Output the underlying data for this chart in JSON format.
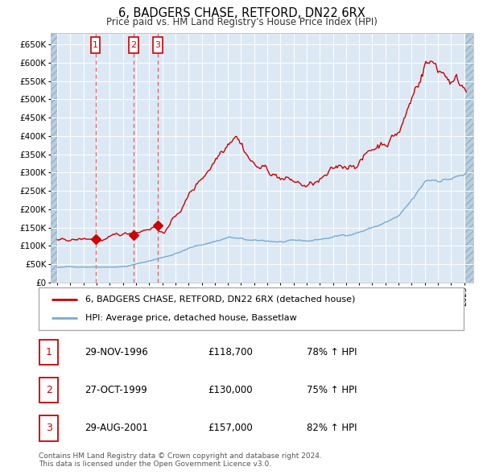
{
  "title": "6, BADGERS CHASE, RETFORD, DN22 6RX",
  "subtitle": "Price paid vs. HM Land Registry's House Price Index (HPI)",
  "legend_line1": "6, BADGERS CHASE, RETFORD, DN22 6RX (detached house)",
  "legend_line2": "HPI: Average price, detached house, Bassetlaw",
  "footer1": "Contains HM Land Registry data © Crown copyright and database right 2024.",
  "footer2": "This data is licensed under the Open Government Licence v3.0.",
  "sales": [
    {
      "label": "1",
      "date": "29-NOV-1996",
      "price": 118700,
      "hpi_pct": "78% ↑ HPI",
      "year_x": 1996.91
    },
    {
      "label": "2",
      "date": "27-OCT-1999",
      "price": 130000,
      "hpi_pct": "75% ↑ HPI",
      "year_x": 1999.82
    },
    {
      "label": "3",
      "date": "29-AUG-2001",
      "price": 157000,
      "hpi_pct": "82% ↑ HPI",
      "year_x": 2001.66
    }
  ],
  "ylim": [
    0,
    680000
  ],
  "yticks": [
    0,
    50000,
    100000,
    150000,
    200000,
    250000,
    300000,
    350000,
    400000,
    450000,
    500000,
    550000,
    600000,
    650000
  ],
  "xlim_start": 1993.5,
  "xlim_end": 2025.7,
  "bg_color": "#dce9f5",
  "hatch_color": "#b8cfe0",
  "grid_color": "#ffffff",
  "red_line_color": "#cc0000",
  "blue_line_color": "#7aaacf",
  "vline_color": "#dd4444",
  "sale_marker_color": "#cc0000",
  "box_edge_color": "#cc0000",
  "box_label_color": "#cc0000"
}
